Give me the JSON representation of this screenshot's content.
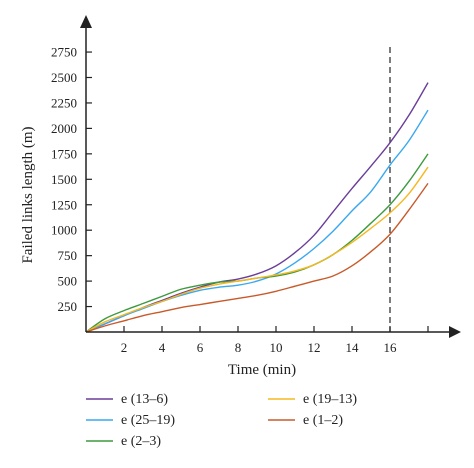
{
  "chart_data": {
    "type": "line",
    "xlabel": "Time (min)",
    "ylabel": "Failed links length (m)",
    "xlim": [
      0,
      18.3
    ],
    "ylim": [
      0,
      2750
    ],
    "x_ticks": [
      2,
      4,
      6,
      8,
      10,
      12,
      14,
      16
    ],
    "y_ticks": [
      250,
      500,
      750,
      1000,
      1250,
      1500,
      1750,
      2000,
      2250,
      2500,
      2750
    ],
    "grid": false,
    "reference_line": {
      "x": 16,
      "style": "dashed"
    },
    "legend_placement": "bottom",
    "x": [
      0,
      1,
      2,
      3,
      4,
      5,
      6,
      7,
      8,
      9,
      10,
      11,
      12,
      13,
      14,
      15,
      16,
      17,
      18
    ],
    "series": [
      {
        "name": "e (13–6)",
        "color": "#6a3d9a",
        "values": [
          0,
          80,
          160,
          240,
          310,
          380,
          440,
          490,
          520,
          570,
          650,
          780,
          950,
          1180,
          1410,
          1630,
          1860,
          2130,
          2450
        ]
      },
      {
        "name": "e (25–19)",
        "color": "#3aa8f0",
        "values": [
          0,
          80,
          160,
          230,
          300,
          360,
          410,
          440,
          460,
          500,
          570,
          680,
          820,
          990,
          1190,
          1380,
          1640,
          1880,
          2180
        ]
      },
      {
        "name": "e (2–3)",
        "color": "#3d9a3d",
        "values": [
          0,
          130,
          210,
          280,
          350,
          420,
          460,
          490,
          500,
          530,
          550,
          590,
          660,
          760,
          900,
          1070,
          1250,
          1480,
          1750
        ]
      },
      {
        "name": "e (19–13)",
        "color": "#f5b820",
        "values": [
          0,
          100,
          170,
          240,
          300,
          370,
          430,
          470,
          500,
          530,
          560,
          600,
          660,
          760,
          880,
          1020,
          1170,
          1360,
          1620
        ]
      },
      {
        "name": "e (1–2)",
        "color": "#c85a2a",
        "values": [
          0,
          60,
          110,
          160,
          200,
          240,
          270,
          300,
          330,
          360,
          400,
          450,
          500,
          550,
          650,
          790,
          960,
          1200,
          1460
        ]
      }
    ]
  }
}
